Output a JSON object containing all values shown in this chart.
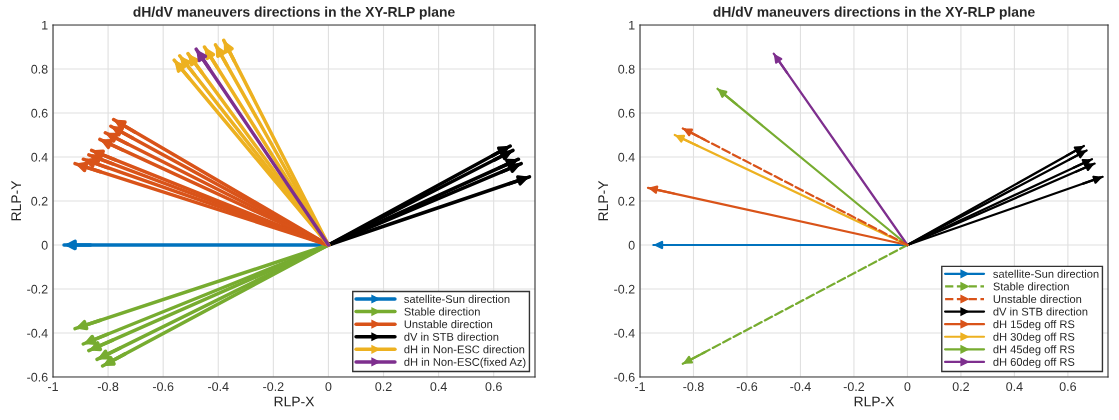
{
  "chart_data": [
    {
      "type": "line",
      "title": "dH/dV maneuvers directions in the XY-RLP plane",
      "xlabel": "RLP-X",
      "ylabel": "RLP-Y",
      "xlim": [
        -1,
        0.75
      ],
      "ylim": [
        -0.6,
        1
      ],
      "xticks": [
        -1,
        -0.8,
        -0.6,
        -0.4,
        -0.2,
        0,
        0.2,
        0.4,
        0.6
      ],
      "yticks": [
        -0.6,
        -0.4,
        -0.2,
        0,
        0.2,
        0.4,
        0.6,
        0.8,
        1
      ],
      "grid": true,
      "legend": "bottom right",
      "series": [
        {
          "name": "satellite-Sun direction",
          "color": "#0072bd",
          "x": [
            0,
            -0.96
          ],
          "values": [
            0,
            0
          ]
        },
        {
          "name": "Stable direction",
          "color": "#77ac30",
          "x": [
            0,
            -0.92
          ],
          "values": [
            0,
            -0.38
          ]
        },
        {
          "color": "#77ac30",
          "x": [
            0,
            -0.89
          ],
          "values": [
            0,
            -0.45
          ]
        },
        {
          "color": "#77ac30",
          "x": [
            0,
            -0.87
          ],
          "values": [
            0,
            -0.48
          ]
        },
        {
          "color": "#77ac30",
          "x": [
            0,
            -0.84
          ],
          "values": [
            0,
            -0.52
          ]
        },
        {
          "color": "#77ac30",
          "x": [
            0,
            -0.82
          ],
          "values": [
            0,
            -0.55
          ]
        },
        {
          "name": "Unstable direction",
          "color": "#d95319",
          "x": [
            0,
            -0.78
          ],
          "values": [
            0,
            0.57
          ]
        },
        {
          "color": "#d95319",
          "x": [
            0,
            -0.79
          ],
          "values": [
            0,
            0.54
          ]
        },
        {
          "color": "#d95319",
          "x": [
            0,
            -0.81
          ],
          "values": [
            0,
            0.51
          ]
        },
        {
          "color": "#d95319",
          "x": [
            0,
            -0.83
          ],
          "values": [
            0,
            0.48
          ]
        },
        {
          "color": "#d95319",
          "x": [
            0,
            -0.86
          ],
          "values": [
            0,
            0.43
          ]
        },
        {
          "color": "#d95319",
          "x": [
            0,
            -0.87
          ],
          "values": [
            0,
            0.41
          ]
        },
        {
          "color": "#d95319",
          "x": [
            0,
            -0.89
          ],
          "values": [
            0,
            0.39
          ]
        },
        {
          "color": "#d95319",
          "x": [
            0,
            -0.92
          ],
          "values": [
            0,
            0.37
          ]
        },
        {
          "name": "dV in STB direction",
          "color": "#000000",
          "x": [
            0,
            0.66
          ],
          "values": [
            0,
            0.45
          ]
        },
        {
          "color": "#000000",
          "x": [
            0,
            0.67
          ],
          "values": [
            0,
            0.43
          ]
        },
        {
          "color": "#000000",
          "x": [
            0,
            0.69
          ],
          "values": [
            0,
            0.39
          ]
        },
        {
          "color": "#000000",
          "x": [
            0,
            0.7
          ],
          "values": [
            0,
            0.37
          ]
        },
        {
          "color": "#000000",
          "x": [
            0,
            0.73
          ],
          "values": [
            0,
            0.31
          ]
        },
        {
          "name": "dH in Non-ESC direction",
          "color": "#edb120",
          "x": [
            0,
            -0.56
          ],
          "values": [
            0,
            0.84
          ]
        },
        {
          "color": "#edb120",
          "x": [
            0,
            -0.54
          ],
          "values": [
            0,
            0.86
          ]
        },
        {
          "color": "#edb120",
          "x": [
            0,
            -0.51
          ],
          "values": [
            0,
            0.87
          ]
        },
        {
          "color": "#edb120",
          "x": [
            0,
            -0.45
          ],
          "values": [
            0,
            0.9
          ]
        },
        {
          "color": "#edb120",
          "x": [
            0,
            -0.41
          ],
          "values": [
            0,
            0.91
          ]
        },
        {
          "color": "#edb120",
          "x": [
            0,
            -0.38
          ],
          "values": [
            0,
            0.93
          ]
        },
        {
          "name": "dH in Non-ESC(fixed Az)",
          "color": "#7e2f8e",
          "x": [
            0,
            -0.48
          ],
          "values": [
            0,
            0.89
          ]
        }
      ]
    },
    {
      "type": "line",
      "title": "dH/dV maneuvers directions in the XY-RLP plane",
      "xlabel": "RLP-X",
      "ylabel": "RLP-Y",
      "xlim": [
        -1,
        0.75
      ],
      "ylim": [
        -0.6,
        1
      ],
      "xticks": [
        -1,
        -0.8,
        -0.6,
        -0.4,
        -0.2,
        0,
        0.2,
        0.4,
        0.6
      ],
      "yticks": [
        -0.6,
        -0.4,
        -0.2,
        0,
        0.2,
        0.4,
        0.6,
        0.8,
        1
      ],
      "grid": true,
      "legend": "bottom right",
      "series": [
        {
          "name": "satellite-Sun direction",
          "color": "#0072bd",
          "x": [
            0,
            -0.95
          ],
          "values": [
            0,
            0
          ]
        },
        {
          "name": "Stable direction",
          "color": "#77ac30",
          "line_style": "dashed",
          "x": [
            0,
            -0.84
          ],
          "values": [
            0,
            -0.54
          ]
        },
        {
          "name": "Unstable direction",
          "color": "#d95319",
          "line_style": "dashed",
          "x": [
            0,
            -0.84
          ],
          "values": [
            0,
            0.53
          ]
        },
        {
          "name": "dV in STB direction",
          "color": "#000000",
          "x": [
            0,
            0.66
          ],
          "values": [
            0,
            0.45
          ]
        },
        {
          "color": "#000000",
          "x": [
            0,
            0.67
          ],
          "values": [
            0,
            0.43
          ]
        },
        {
          "color": "#000000",
          "x": [
            0,
            0.69
          ],
          "values": [
            0,
            0.39
          ]
        },
        {
          "color": "#000000",
          "x": [
            0,
            0.7
          ],
          "values": [
            0,
            0.37
          ]
        },
        {
          "color": "#000000",
          "x": [
            0,
            0.73
          ],
          "values": [
            0,
            0.31
          ]
        },
        {
          "name": "dH 15deg off RS",
          "color": "#d95319",
          "x": [
            0,
            -0.97
          ],
          "values": [
            0,
            0.26
          ]
        },
        {
          "name": "dH 30deg off RS",
          "color": "#edb120",
          "x": [
            0,
            -0.87
          ],
          "values": [
            0,
            0.5
          ]
        },
        {
          "name": "dH 45deg off RS",
          "color": "#77ac30",
          "x": [
            0,
            -0.71
          ],
          "values": [
            0,
            0.71
          ]
        },
        {
          "name": "dH 60deg off RS",
          "color": "#7e2f8e",
          "x": [
            0,
            -0.5
          ],
          "values": [
            0,
            0.87
          ]
        }
      ]
    }
  ]
}
